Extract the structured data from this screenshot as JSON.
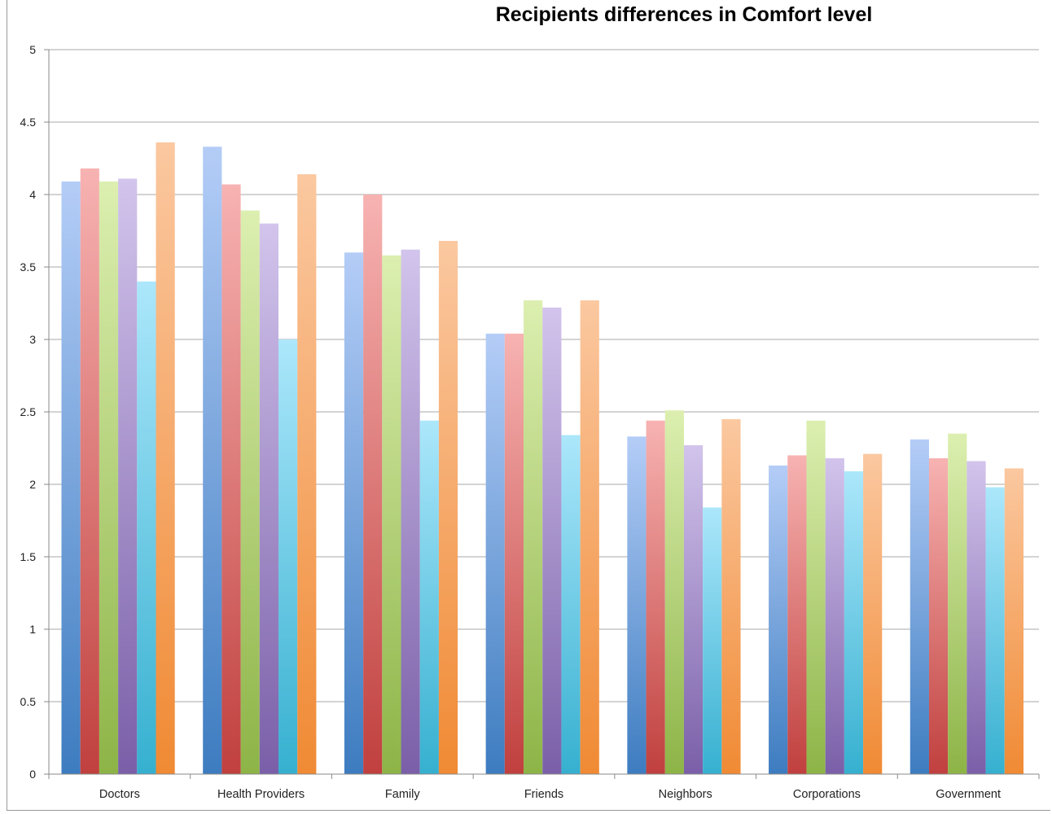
{
  "chart_data": {
    "type": "bar",
    "title": "Recipients differences in Comfort level",
    "xlabel": "",
    "ylabel": "",
    "ylim": [
      0,
      5
    ],
    "yticks": [
      "0",
      "0.5",
      "1",
      "1.5",
      "2",
      "2.5",
      "3",
      "3.5",
      "4",
      "4.5",
      "5"
    ],
    "grid": true,
    "legend": "none",
    "categories": [
      "Doctors",
      "Health Providers",
      "Family",
      "Friends",
      "Neighbors",
      "Corporations",
      "Government"
    ],
    "series": [
      {
        "color_top": "#b4cdf7",
        "color_bottom": "#3d7cc0",
        "values": [
          4.09,
          4.33,
          3.6,
          3.04,
          2.33,
          2.13,
          2.31
        ]
      },
      {
        "color_top": "#f7b3b2",
        "color_bottom": "#c0403e",
        "values": [
          4.18,
          4.07,
          4.0,
          3.04,
          2.44,
          2.2,
          2.18
        ]
      },
      {
        "color_top": "#dcefb0",
        "color_bottom": "#8db447",
        "values": [
          4.09,
          3.89,
          3.58,
          3.27,
          2.51,
          2.44,
          2.35
        ]
      },
      {
        "color_top": "#d2c4ec",
        "color_bottom": "#7a5fa8",
        "values": [
          4.11,
          3.8,
          3.62,
          3.22,
          2.27,
          2.18,
          2.16
        ]
      },
      {
        "color_top": "#ace7fb",
        "color_bottom": "#36b0d0",
        "values": [
          3.4,
          3.0,
          2.44,
          2.34,
          1.84,
          2.09,
          1.98
        ]
      },
      {
        "color_top": "#fbc8a0",
        "color_bottom": "#f08a34",
        "values": [
          4.36,
          4.14,
          3.68,
          3.27,
          2.45,
          2.21,
          2.11
        ]
      }
    ]
  }
}
